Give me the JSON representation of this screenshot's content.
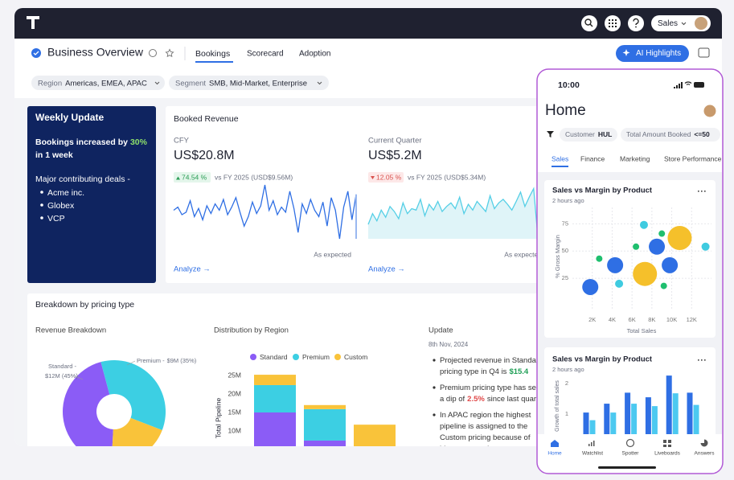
{
  "topbar": {
    "user_menu": "Sales"
  },
  "header": {
    "title": "Business Overview",
    "tabs": [
      "Bookings",
      "Scorecard",
      "Adoption"
    ],
    "ai_button": "AI Highlights"
  },
  "filters": [
    {
      "label": "Region",
      "value": "Americas, EMEA, APAC"
    },
    {
      "label": "Segment",
      "value": "SMB, Mid-Market, Enterprise"
    }
  ],
  "weekly_update": {
    "title": "Weekly Update",
    "headline": "Bookings increased by",
    "highlight": "30%",
    "headline_end": "in 1 week",
    "deals_intro": "Major contributing deals -",
    "deals": [
      "Acme inc.",
      "Globex",
      "VCP"
    ]
  },
  "booked_revenue": {
    "title": "Booked Revenue",
    "metrics": [
      {
        "label": "CFY",
        "value": "US$20.8M",
        "change": "74.54 %",
        "comparison": "vs FY 2025 (USD$9.56M)",
        "trend": [
          55,
          60,
          48,
          52,
          70,
          45,
          58,
          40,
          62,
          50,
          65,
          55,
          72,
          48,
          60,
          75,
          52,
          30,
          45,
          68,
          50,
          62,
          95,
          55,
          70,
          48,
          60,
          52,
          85,
          58,
          20,
          65,
          50,
          72,
          55,
          45,
          68,
          30,
          75,
          55,
          10,
          60,
          85,
          40,
          80
        ],
        "note": "As expected",
        "link": "Analyze →"
      },
      {
        "label": "Current Quarter",
        "value": "US$5.2M",
        "change": "12.05 %",
        "comparison": "vs FY 2025 (USD$5.34M)",
        "trend": [
          40,
          55,
          45,
          60,
          50,
          65,
          58,
          48,
          70,
          55,
          62,
          60,
          75,
          52,
          68,
          60,
          72,
          58,
          65,
          70,
          62,
          78,
          55,
          68,
          60,
          72,
          65,
          58,
          80,
          62,
          70,
          75,
          68,
          60,
          72,
          85,
          65,
          78,
          90,
          20,
          95,
          70
        ],
        "note": "As expected",
        "link": "Analyze →"
      }
    ]
  },
  "breakdown": {
    "title": "Breakdown by pricing type",
    "revenue_breakdown": {
      "title": "Revenue Breakdown",
      "type": "pie",
      "slices": [
        {
          "name": "Standard -",
          "value_label": "$12M (45%)",
          "value": 45,
          "color": "#8b5cf6"
        },
        {
          "name": "Premium -",
          "value_label": "$9M (35%)",
          "value": 35,
          "color": "#3ccfe3"
        },
        {
          "value": 20,
          "color": "#f9c33a"
        }
      ]
    },
    "distribution": {
      "title": "Distribution by Region",
      "type": "bar",
      "stacked": true,
      "y_label": "Total Pipeline",
      "categories": [
        null,
        null,
        null
      ],
      "series": [
        {
          "name": "Standard",
          "color": "#8b5cf6",
          "values": [
            15,
            7.4,
            5
          ]
        },
        {
          "name": "Premium",
          "color": "#3ccfe3",
          "values": [
            7.4,
            8.5,
            0
          ]
        },
        {
          "name": "Custom",
          "color": "#f9c33a",
          "values": [
            2.8,
            1.1,
            6.7
          ]
        }
      ],
      "ylim": [
        0,
        28
      ],
      "yticks": [
        {
          "value": 10,
          "label": "10M"
        },
        {
          "value": 15,
          "label": "15M"
        },
        {
          "value": 20,
          "label": "20M"
        },
        {
          "value": 25,
          "label": "25M"
        }
      ]
    },
    "update": {
      "title": "Update",
      "date": "8th Nov, 2024",
      "bullets": [
        {
          "lines": [
            "Projected revenue in Standa",
            "pricing type in Q4 is"
          ],
          "highlight": "$15.4",
          "highlight_color": "#1e9e55"
        },
        {
          "lines": [
            "Premium pricing type has se",
            "a dip of"
          ],
          "highlight": "2.5%",
          "highlight_color": "#e04848",
          "after": "since last quar"
        },
        {
          "lines": [
            "In APAC region the highest",
            "pipeline is assigned to the",
            "Custom pricing because of",
            "bigger enterprise targets"
          ]
        }
      ]
    }
  },
  "mobile": {
    "time": "10:00",
    "title": "Home",
    "filters": [
      {
        "label": "Customer",
        "value": "HUL"
      },
      {
        "label": "Total Amount Booked",
        "value": "<=50"
      }
    ],
    "tabs": [
      "Sales",
      "Finance",
      "Marketing",
      "Store Performance"
    ],
    "scatter": {
      "type": "scatter",
      "title": "Sales vs Margin by Product",
      "subtitle": "2 hours ago",
      "x_label": "Total Sales",
      "y_label": "% Gross Margin",
      "xlim": [
        0,
        14000
      ],
      "ylim": [
        0,
        90
      ],
      "xticks": [
        {
          "value": 2000,
          "label": "2K"
        },
        {
          "value": 4000,
          "label": "4K"
        },
        {
          "value": 6000,
          "label": "6K"
        },
        {
          "value": 8000,
          "label": "8K"
        },
        {
          "value": 10000,
          "label": "10K"
        },
        {
          "value": 12000,
          "label": "12K"
        }
      ],
      "yticks": [
        25,
        50,
        75
      ],
      "grid": true,
      "series": [
        {
          "color": "#f5c02b",
          "x": [
            10800,
            7300
          ],
          "values": [
            62,
            29
          ],
          "size": [
            3,
            3
          ]
        },
        {
          "color": "#2f6fe4",
          "x": [
            8500,
            4300,
            9800,
            1800
          ],
          "values": [
            54,
            37,
            37,
            17
          ],
          "size": [
            2,
            2,
            2,
            2
          ]
        },
        {
          "color": "#3fcbe0",
          "x": [
            7200,
            13400,
            4700
          ],
          "values": [
            74,
            54,
            20
          ],
          "size": [
            1,
            1,
            1
          ]
        },
        {
          "color": "#1fbf6f",
          "x": [
            9000,
            6400,
            2700,
            9200
          ],
          "values": [
            66,
            54,
            43,
            18
          ],
          "size": [
            0.8,
            0.8,
            0.8,
            0.8
          ]
        }
      ]
    },
    "bars": {
      "type": "bar",
      "title": "Sales vs Margin by Product",
      "subtitle": "2 hours ago",
      "y_label": "Growth of total sales",
      "categories": [
        null,
        null,
        null,
        null,
        null,
        null
      ],
      "series": [
        {
          "color": "#2f6fe4",
          "values": [
            1.05,
            1.34,
            1.7,
            1.55,
            2.26,
            1.7
          ]
        },
        {
          "color": "#4cc9f0",
          "values": [
            0.8,
            1.05,
            1.34,
            1.26,
            1.68,
            1.3
          ]
        }
      ],
      "ylim": [
        0,
        2.6
      ],
      "yticks": [
        1,
        2
      ]
    },
    "nav": [
      "Home",
      "Watchlist",
      "Spotter",
      "Liveboards",
      "Answers"
    ]
  }
}
